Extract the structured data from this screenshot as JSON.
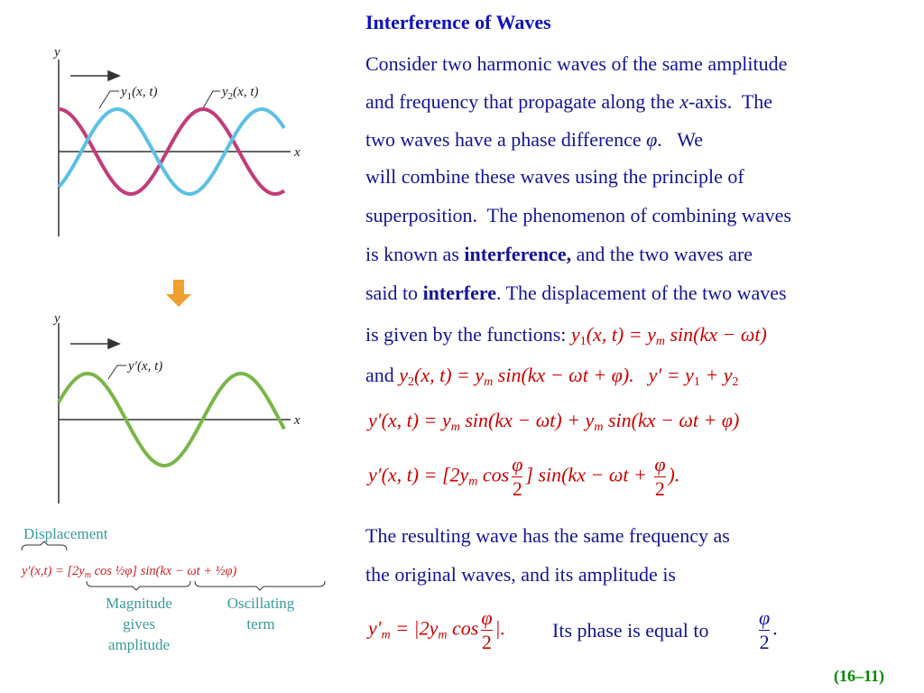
{
  "title": "Interference of Waves",
  "body": [
    [
      "Consider two harmonic waves of the same amplitude"
    ],
    [
      "and frequency that propagate along the ",
      "x",
      "-axis.  The"
    ],
    [
      "two waves have a phase difference ",
      "φ",
      ".   We"
    ],
    [
      "will combine these waves using the principle of"
    ],
    [
      "superposition.  The phenomenon of combining waves"
    ],
    [
      "is known as ",
      "interference,",
      " and the two waves are"
    ],
    [
      "said to ",
      "interfere",
      ". The displacement of the two waves"
    ],
    [
      "is given by the functions: "
    ],
    [
      "and "
    ],
    [
      "The resulting wave has the same frequency as"
    ],
    [
      "the original waves, and its amplitude is"
    ],
    [
      "Its phase is equal to "
    ]
  ],
  "equations": {
    "y1": [
      "y",
      "1",
      "(x, t) = y",
      "m",
      " sin(kx − ωt)"
    ],
    "y2": [
      "y",
      "2",
      "(x, t) = y",
      "m",
      " sin(kx − ωt + φ)."
    ],
    "sum": [
      "y′ = y",
      "1",
      " + y",
      "2"
    ],
    "sum_expanded": [
      "y′(x, t) = y",
      "m",
      " sin(kx − ωt) + y",
      "m",
      " sin(kx − ωt + φ)"
    ],
    "result": [
      "y′(x, t) = [2y",
      "m",
      " cos",
      "φ",
      "2",
      "] sin(kx − ωt + ",
      "φ",
      "2",
      ")."
    ],
    "amplitude": [
      "y′",
      "m",
      " = |2y",
      "m",
      " cos",
      "φ",
      "2",
      "|."
    ],
    "phase": [
      "φ",
      "2",
      "."
    ]
  },
  "figure": {
    "top": {
      "y_axis": "y",
      "x_axis": "x",
      "wave1_label": [
        "y",
        "1",
        "(x, t)"
      ],
      "wave2_label": [
        "y",
        "2",
        "(x, t)"
      ]
    },
    "bottom": {
      "y_axis": "y",
      "x_axis": "x",
      "wave_label": "y′(x, t)"
    },
    "caption": {
      "displacement": "Displacement",
      "formula": [
        "y′(x,t) = [2y",
        "m",
        " cos ½φ] sin(kx − ωt + ½φ)"
      ],
      "magnitude": [
        "Magnitude",
        "gives",
        "amplitude"
      ],
      "oscillating": [
        "Oscillating",
        "term"
      ]
    }
  },
  "slide_number": "(16–11)"
}
